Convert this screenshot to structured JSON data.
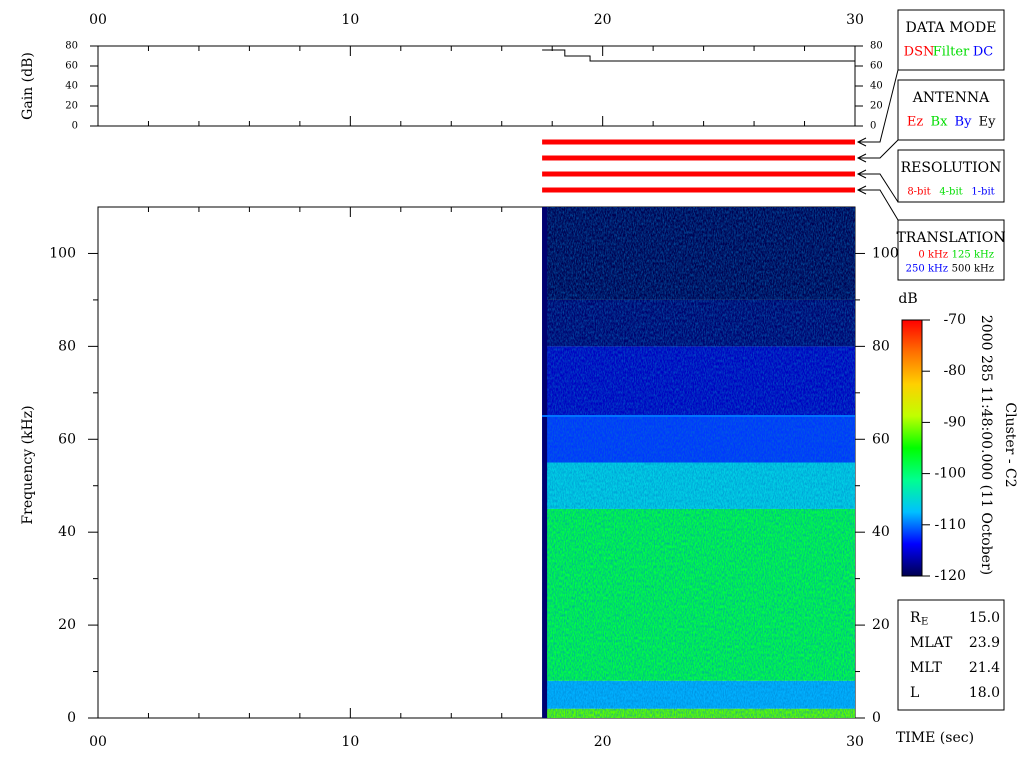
{
  "chart_data": {
    "type": "spectrogram",
    "xlabel": "TIME (sec)",
    "xlim": [
      0,
      30
    ],
    "xticks": [
      {
        "value": 0,
        "label": "00"
      },
      10,
      20,
      30
    ],
    "xminorticks": [
      2,
      4,
      6,
      8,
      12,
      14,
      16,
      18,
      22,
      24,
      26,
      28
    ],
    "data_span": [
      17.6,
      30
    ],
    "gain": {
      "ylabel": "Gain (dB)",
      "ylim": [
        0,
        80
      ],
      "yticks": [
        0,
        20,
        40,
        60,
        80
      ],
      "x": [
        17.6,
        18.5,
        18.5,
        19.5,
        19.5,
        30
      ],
      "values": [
        76,
        76,
        70,
        70,
        65,
        65
      ],
      "color": "#000000"
    },
    "mode_color": "#ff0000",
    "panels": [
      {
        "title": "DATA MODE",
        "items": [
          {
            "text": "DSN",
            "color": "#ff0000"
          },
          {
            "text": "Filter",
            "color": "#00dd00"
          },
          {
            "text": "DC",
            "color": "#0000ff"
          }
        ]
      },
      {
        "title": "ANTENNA",
        "items": [
          {
            "text": "Ez",
            "color": "#ff0000"
          },
          {
            "text": "Bx",
            "color": "#00dd00"
          },
          {
            "text": "By",
            "color": "#0000ff"
          },
          {
            "text": "Ey",
            "color": "#000000"
          }
        ]
      },
      {
        "title": "RESOLUTION",
        "items": [
          {
            "text": "8-bit",
            "color": "#ff0000"
          },
          {
            "text": "4-bit",
            "color": "#00dd00"
          },
          {
            "text": "1-bit",
            "color": "#0000ff"
          }
        ]
      },
      {
        "title": "TRANSLATION",
        "items": [
          {
            "text": "0 kHz",
            "color": "#ff0000"
          },
          {
            "text": "125 kHz",
            "color": "#00dd00"
          },
          {
            "text": "250 kHz",
            "color": "#0000ff"
          },
          {
            "text": "500 kHz",
            "color": "#000000"
          }
        ]
      }
    ],
    "spectrogram": {
      "ylabel": "Frequency (kHz)",
      "ylim": [
        0,
        110
      ],
      "yticks": [
        0,
        20,
        40,
        60,
        80,
        100
      ],
      "yminorticks": [
        10,
        30,
        50,
        70,
        90
      ],
      "band_edges": [
        0,
        2,
        8,
        45,
        55,
        65,
        80,
        90,
        110
      ],
      "band_db": [
        -92,
        -108,
        -98,
        -106,
        -112,
        -116,
        -119,
        -120
      ],
      "tone_khz": 65,
      "tone_db": -110
    },
    "colorbar": {
      "label": "dB",
      "zlim": [
        -120,
        -70
      ],
      "zticks": [
        -70,
        -80,
        -90,
        -100,
        -110,
        -120
      ],
      "colors": [
        "#000050",
        "#0000ff",
        "#00c0ff",
        "#00ff90",
        "#00ff00",
        "#c0ff00",
        "#ffd000",
        "#ff7000",
        "#ff0000"
      ]
    },
    "annotation": [
      "2000 285 11:48:00.000 (11 October)",
      "Cluster - C2"
    ],
    "info": [
      {
        "name": "R",
        "subscript": "E",
        "value": "15.0"
      },
      {
        "name": "MLAT",
        "value": "23.9"
      },
      {
        "name": "MLT",
        "value": "21.4"
      },
      {
        "name": "L",
        "value": "18.0"
      }
    ]
  }
}
